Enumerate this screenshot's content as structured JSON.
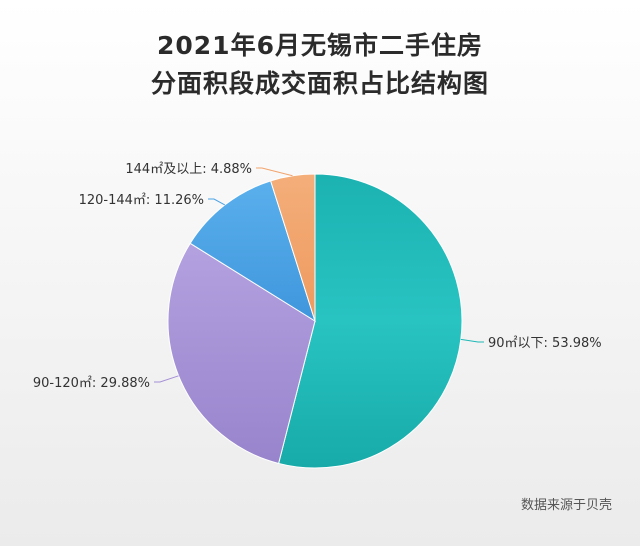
{
  "chart_data": {
    "type": "pie",
    "title": [
      "2021年6月无锡市二手住房",
      "分面积段成交面积占比结构图"
    ],
    "slices": [
      {
        "label": "90㎡以下",
        "value": 53.98,
        "display": "90㎡以下: 53.98%",
        "color": "#1fb8b6"
      },
      {
        "label": "90-120㎡",
        "value": 29.88,
        "display": "90-120㎡: 29.88%",
        "color": "#a48fd6"
      },
      {
        "label": "120-144㎡",
        "value": 11.26,
        "display": "120-144㎡: 11.26%",
        "color": "#4aa3e6"
      },
      {
        "label": "144㎡及以上",
        "value": 4.88,
        "display": "144㎡及以上: 4.88%",
        "color": "#f2a46c"
      }
    ]
  },
  "source": "数据来源于贝壳"
}
